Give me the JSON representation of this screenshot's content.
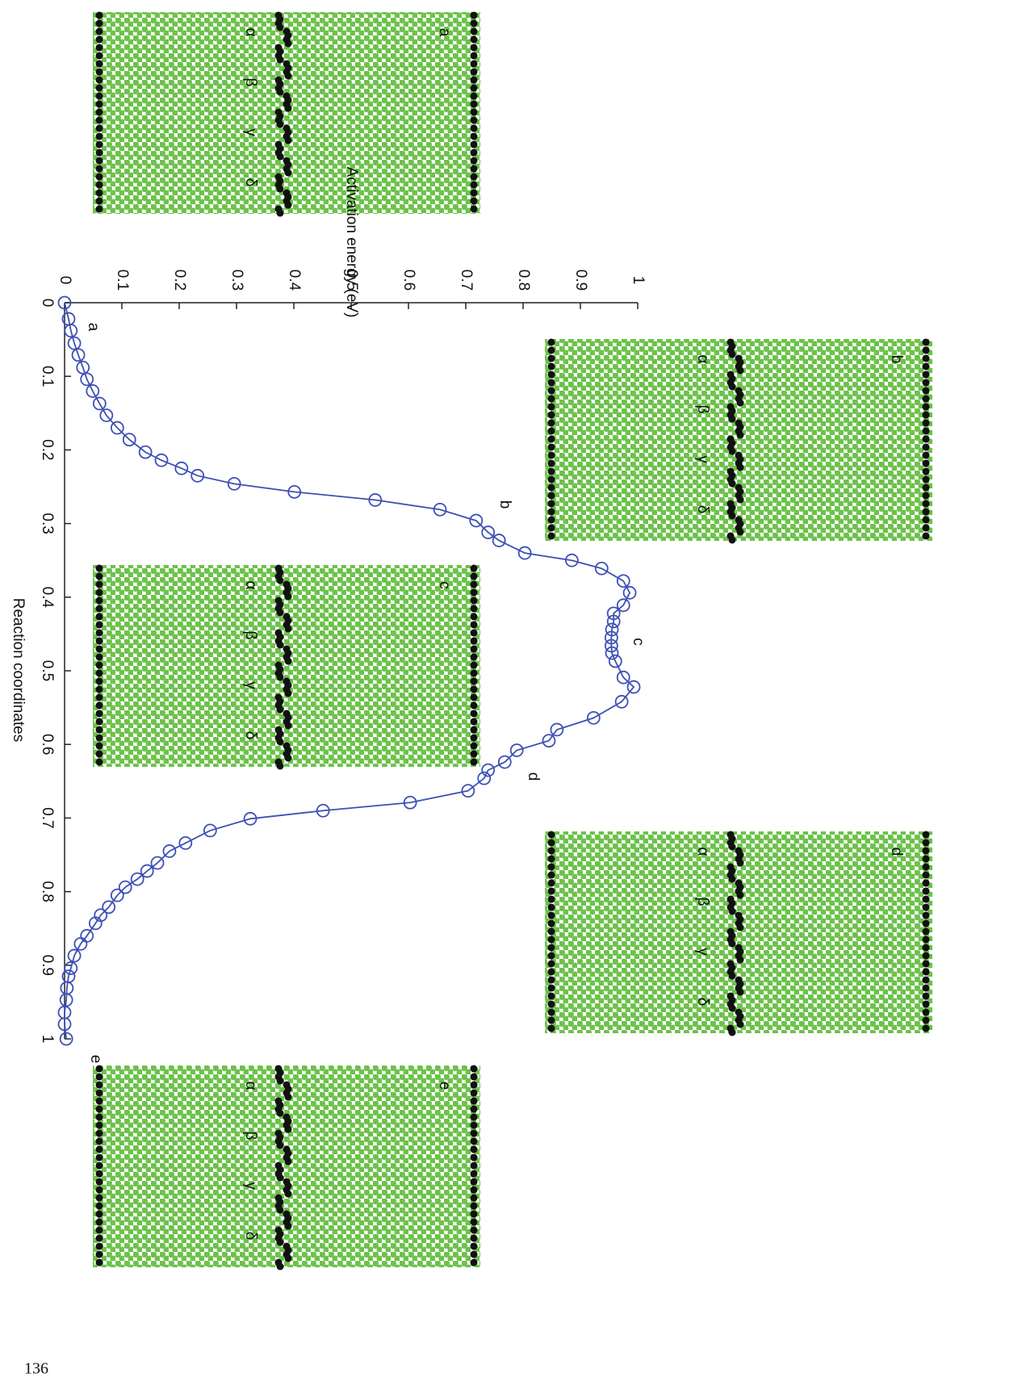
{
  "chart_data": {
    "type": "line",
    "xlabel": "Reaction coordinates",
    "ylabel": "Activation energy (eV)",
    "x": [
      0,
      0.022,
      0.038,
      0.055,
      0.071,
      0.088,
      0.104,
      0.12,
      0.137,
      0.153,
      0.17,
      0.186,
      0.203,
      0.214,
      0.225,
      0.235,
      0.246,
      0.257,
      0.268,
      0.281,
      0.296,
      0.312,
      0.323,
      0.34,
      0.35,
      0.361,
      0.378,
      0.394,
      0.411,
      0.422,
      0.433,
      0.444,
      0.455,
      0.466,
      0.476,
      0.487,
      0.509,
      0.522,
      0.542,
      0.564,
      0.58,
      0.595,
      0.608,
      0.624,
      0.635,
      0.646,
      0.663,
      0.679,
      0.69,
      0.701,
      0.717,
      0.734,
      0.745,
      0.761,
      0.772,
      0.783,
      0.794,
      0.805,
      0.821,
      0.832,
      0.843,
      0.86,
      0.871,
      0.887,
      0.904,
      0.915,
      0.931,
      0.947,
      0.964,
      0.98,
      1
    ],
    "values": [
      0,
      0.007,
      0.011,
      0.017,
      0.024,
      0.032,
      0.039,
      0.049,
      0.061,
      0.073,
      0.092,
      0.113,
      0.141,
      0.169,
      0.204,
      0.232,
      0.296,
      0.401,
      0.542,
      0.655,
      0.718,
      0.739,
      0.758,
      0.803,
      0.885,
      0.937,
      0.975,
      0.986,
      0.975,
      0.958,
      0.958,
      0.955,
      0.954,
      0.954,
      0.955,
      0.961,
      0.975,
      0.993,
      0.972,
      0.923,
      0.859,
      0.845,
      0.789,
      0.768,
      0.739,
      0.732,
      0.704,
      0.603,
      0.451,
      0.324,
      0.254,
      0.211,
      0.183,
      0.162,
      0.144,
      0.127,
      0.106,
      0.092,
      0.077,
      0.063,
      0.054,
      0.039,
      0.028,
      0.017,
      0.011,
      0.007,
      0.004,
      0.003,
      0,
      0,
      0.003
    ],
    "color": "#3d50b4",
    "xlim": [
      0,
      1
    ],
    "ylim": [
      0,
      1
    ],
    "xticks": [
      0,
      0.1,
      0.2,
      0.3,
      0.4,
      0.5,
      0.6,
      0.7,
      0.8,
      0.9,
      1
    ],
    "yticks": [
      0,
      0.1,
      0.2,
      0.3,
      0.4,
      0.5,
      0.6,
      0.7,
      0.8,
      0.9,
      1
    ],
    "annotations": [
      "a",
      "b",
      "c",
      "d",
      "e"
    ]
  },
  "panels": [
    {
      "label": "a",
      "layers": [
        "α",
        "β",
        "γ",
        "δ"
      ]
    },
    {
      "label": "b",
      "layers": [
        "α",
        "β",
        "γ",
        "δ"
      ]
    },
    {
      "label": "c",
      "layers": [
        "α",
        "β",
        "γ",
        "δ"
      ]
    },
    {
      "label": "d",
      "layers": [
        "α",
        "β",
        "γ",
        "δ"
      ]
    },
    {
      "label": "e",
      "layers": [
        "α",
        "β",
        "γ",
        "δ"
      ]
    }
  ],
  "page_number": "136"
}
